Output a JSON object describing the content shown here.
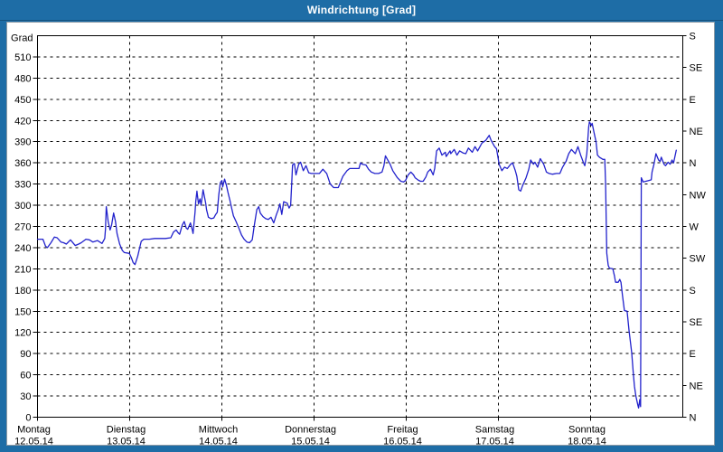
{
  "window": {
    "title": "Windrichtung [Grad]",
    "colors": {
      "frame": "#1e6da6",
      "title_text": "#ffffff",
      "panel_bg": "#ffffff",
      "axis": "#000000",
      "grid": "#000000",
      "text": "#000000",
      "line": "#2222cc"
    }
  },
  "chart_data": {
    "type": "line",
    "title": "Windrichtung [Grad]",
    "grid": "dashed",
    "legend": "none",
    "y_axis_left": {
      "label": "Grad",
      "min": 0,
      "max": 540,
      "tick_step": 30,
      "ticks": [
        0,
        30,
        60,
        90,
        120,
        150,
        180,
        210,
        240,
        270,
        300,
        330,
        360,
        390,
        420,
        450,
        480,
        510
      ]
    },
    "y_axis_right": {
      "kind": "compass",
      "ticks": [
        {
          "deg": 0,
          "label": "N"
        },
        {
          "deg": 45,
          "label": "NE"
        },
        {
          "deg": 90,
          "label": "E"
        },
        {
          "deg": 135,
          "label": "SE"
        },
        {
          "deg": 180,
          "label": "S"
        },
        {
          "deg": 225,
          "label": "SW"
        },
        {
          "deg": 270,
          "label": "W"
        },
        {
          "deg": 315,
          "label": "NW"
        },
        {
          "deg": 360,
          "label": "N"
        },
        {
          "deg": 405,
          "label": "NE"
        },
        {
          "deg": 450,
          "label": "E"
        },
        {
          "deg": 495,
          "label": "SE"
        },
        {
          "deg": 540,
          "label": "S"
        }
      ]
    },
    "x_axis": {
      "unit": "hours since 12.05.14 00:00",
      "hours_per_day": 24,
      "days": [
        {
          "name": "Montag",
          "date": "12.05.14"
        },
        {
          "name": "Dienstag",
          "date": "13.05.14"
        },
        {
          "name": "Mittwoch",
          "date": "14.05.14"
        },
        {
          "name": "Donnerstag",
          "date": "15.05.14"
        },
        {
          "name": "Freitag",
          "date": "16.05.14"
        },
        {
          "name": "Samstag",
          "date": "17.05.14"
        },
        {
          "name": "Sonntag",
          "date": "18.05.14"
        }
      ]
    },
    "series": [
      {
        "name": "Windrichtung",
        "unit": "Grad",
        "color": "#2222cc",
        "points": [
          [
            0,
            252
          ],
          [
            1.4,
            252
          ],
          [
            2.1,
            242
          ],
          [
            2.6,
            240
          ],
          [
            3.5,
            247
          ],
          [
            4.4,
            255
          ],
          [
            5.1,
            254
          ],
          [
            6.1,
            248
          ],
          [
            6.8,
            247
          ],
          [
            7.5,
            245
          ],
          [
            8.6,
            251
          ],
          [
            9.8,
            243
          ],
          [
            10.7,
            245
          ],
          [
            11.4,
            247
          ],
          [
            12.6,
            252
          ],
          [
            13.5,
            251
          ],
          [
            14.4,
            248
          ],
          [
            15.6,
            250
          ],
          [
            16.8,
            246
          ],
          [
            17.5,
            253
          ],
          [
            17.7,
            266
          ],
          [
            17.9,
            298
          ],
          [
            18.4,
            277
          ],
          [
            18.9,
            265
          ],
          [
            19.3,
            272
          ],
          [
            19.8,
            289
          ],
          [
            20.3,
            277
          ],
          [
            20.7,
            260
          ],
          [
            21.4,
            245
          ],
          [
            22.1,
            236
          ],
          [
            22.6,
            233
          ],
          [
            23.8,
            232
          ],
          [
            24,
            231
          ],
          [
            24.5,
            225
          ],
          [
            24.9,
            219
          ],
          [
            25.4,
            216
          ],
          [
            26.1,
            228
          ],
          [
            26.6,
            240
          ],
          [
            27,
            249
          ],
          [
            27.7,
            252
          ],
          [
            29.1,
            252
          ],
          [
            30.5,
            253
          ],
          [
            31.9,
            253
          ],
          [
            33.3,
            253
          ],
          [
            34.7,
            254
          ],
          [
            35.4,
            262
          ],
          [
            36.1,
            265
          ],
          [
            36.6,
            261
          ],
          [
            37,
            259
          ],
          [
            37.7,
            272
          ],
          [
            38.2,
            277
          ],
          [
            38.7,
            268
          ],
          [
            39.1,
            266
          ],
          [
            39.8,
            275
          ],
          [
            40.3,
            265
          ],
          [
            40.5,
            260
          ],
          [
            41,
            290
          ],
          [
            41.2,
            305
          ],
          [
            41.5,
            320
          ],
          [
            41.9,
            302
          ],
          [
            42.3,
            309
          ],
          [
            42.6,
            300
          ],
          [
            43.1,
            322
          ],
          [
            43.8,
            303
          ],
          [
            44,
            294
          ],
          [
            44.5,
            283
          ],
          [
            45.2,
            281
          ],
          [
            45.9,
            282
          ],
          [
            46.4,
            287
          ],
          [
            46.8,
            290
          ],
          [
            47.2,
            315
          ],
          [
            47.6,
            332
          ],
          [
            48,
            335
          ],
          [
            48.2,
            326
          ],
          [
            48.7,
            337
          ],
          [
            49.2,
            328
          ],
          [
            49.6,
            318
          ],
          [
            50.1,
            307
          ],
          [
            50.6,
            295
          ],
          [
            51,
            285
          ],
          [
            51.7,
            277
          ],
          [
            52.4,
            268
          ],
          [
            53.1,
            258
          ],
          [
            53.8,
            252
          ],
          [
            54.5,
            248
          ],
          [
            55.2,
            247
          ],
          [
            55.9,
            251
          ],
          [
            56.4,
            270
          ],
          [
            57.1,
            294
          ],
          [
            57.6,
            298
          ],
          [
            58,
            289
          ],
          [
            58.7,
            284
          ],
          [
            59.4,
            281
          ],
          [
            60.1,
            280
          ],
          [
            60.8,
            283
          ],
          [
            61.5,
            275
          ],
          [
            62.2,
            287
          ],
          [
            62.7,
            294
          ],
          [
            63.1,
            302
          ],
          [
            63.6,
            287
          ],
          [
            64.1,
            305
          ],
          [
            64.5,
            304
          ],
          [
            65,
            303
          ],
          [
            65.5,
            296
          ],
          [
            65.9,
            300
          ],
          [
            66.2,
            334
          ],
          [
            66.4,
            357
          ],
          [
            66.9,
            359
          ],
          [
            67.3,
            343
          ],
          [
            68,
            358
          ],
          [
            68.5,
            361
          ],
          [
            69.2,
            349
          ],
          [
            69.9,
            356
          ],
          [
            70.6,
            346
          ],
          [
            71.3,
            345
          ],
          [
            72,
            345
          ],
          [
            73.4,
            345
          ],
          [
            74.3,
            351
          ],
          [
            75.3,
            345
          ],
          [
            76.2,
            330
          ],
          [
            77.1,
            325
          ],
          [
            78.3,
            325
          ],
          [
            79.5,
            341
          ],
          [
            80.6,
            349
          ],
          [
            81.3,
            352
          ],
          [
            82.5,
            352
          ],
          [
            83.7,
            352
          ],
          [
            84.1,
            360
          ],
          [
            84.6,
            358
          ],
          [
            85.5,
            357
          ],
          [
            86.2,
            351
          ],
          [
            86.9,
            347
          ],
          [
            87.8,
            345
          ],
          [
            88.8,
            345
          ],
          [
            89.7,
            347
          ],
          [
            90.2,
            356
          ],
          [
            90.6,
            370
          ],
          [
            91.3,
            363
          ],
          [
            91.8,
            358
          ],
          [
            92.5,
            349
          ],
          [
            93.7,
            339
          ],
          [
            94.6,
            334
          ],
          [
            95.3,
            333
          ],
          [
            95.8,
            335
          ],
          [
            96.5,
            343
          ],
          [
            97.2,
            347
          ],
          [
            97.9,
            343
          ],
          [
            98.3,
            339
          ],
          [
            99,
            336
          ],
          [
            99.7,
            334
          ],
          [
            100.4,
            334
          ],
          [
            101.1,
            340
          ],
          [
            101.6,
            347
          ],
          [
            102.3,
            351
          ],
          [
            103,
            343
          ],
          [
            103.4,
            352
          ],
          [
            103.9,
            377
          ],
          [
            104.6,
            381
          ],
          [
            105.3,
            371
          ],
          [
            106.2,
            375
          ],
          [
            106.4,
            369
          ],
          [
            107.4,
            377
          ],
          [
            107.6,
            373
          ],
          [
            108.5,
            379
          ],
          [
            109.2,
            371
          ],
          [
            109.9,
            377
          ],
          [
            110.8,
            374
          ],
          [
            111.5,
            373
          ],
          [
            112.2,
            381
          ],
          [
            113.2,
            375
          ],
          [
            113.9,
            383
          ],
          [
            114.6,
            377
          ],
          [
            115.7,
            388
          ],
          [
            116.7,
            392
          ],
          [
            117.6,
            399
          ],
          [
            118.1,
            392
          ],
          [
            119,
            383
          ],
          [
            119.5,
            380
          ],
          [
            120.2,
            358
          ],
          [
            120.9,
            349
          ],
          [
            121.6,
            354
          ],
          [
            122.3,
            352
          ],
          [
            123.2,
            358
          ],
          [
            123.7,
            360
          ],
          [
            124.4,
            349
          ],
          [
            124.8,
            341
          ],
          [
            125.3,
            322
          ],
          [
            125.8,
            320
          ],
          [
            126.3,
            328
          ],
          [
            127.2,
            339
          ],
          [
            127.9,
            351
          ],
          [
            128.4,
            364
          ],
          [
            129.1,
            358
          ],
          [
            129.5,
            361
          ],
          [
            130.2,
            354
          ],
          [
            130.9,
            366
          ],
          [
            131.8,
            358
          ],
          [
            132.5,
            347
          ],
          [
            133.2,
            345
          ],
          [
            134.1,
            344
          ],
          [
            135.1,
            345
          ],
          [
            136,
            345
          ],
          [
            136.7,
            354
          ],
          [
            137.6,
            362
          ],
          [
            138.3,
            373
          ],
          [
            139,
            379
          ],
          [
            140,
            373
          ],
          [
            140.7,
            383
          ],
          [
            141.4,
            371
          ],
          [
            142.3,
            358
          ],
          [
            142.5,
            356
          ],
          [
            143,
            373
          ],
          [
            143.5,
            411
          ],
          [
            143.7,
            418
          ],
          [
            144.2,
            413
          ],
          [
            144.4,
            416
          ],
          [
            144.9,
            403
          ],
          [
            145.4,
            390
          ],
          [
            145.8,
            371
          ],
          [
            146.3,
            368
          ],
          [
            147.2,
            365
          ],
          [
            147.7,
            365
          ],
          [
            147.9,
            330
          ],
          [
            148.2,
            232
          ],
          [
            148.6,
            215
          ],
          [
            148.9,
            211
          ],
          [
            149.8,
            210
          ],
          [
            150.2,
            200
          ],
          [
            150.5,
            191
          ],
          [
            151.2,
            191
          ],
          [
            151.6,
            195
          ],
          [
            151.9,
            191
          ],
          [
            152.3,
            172
          ],
          [
            152.6,
            160
          ],
          [
            152.8,
            151
          ],
          [
            153.5,
            150
          ],
          [
            154,
            123
          ],
          [
            154.4,
            105
          ],
          [
            154.7,
            91
          ],
          [
            155.1,
            63
          ],
          [
            155.4,
            44
          ],
          [
            155.8,
            30
          ],
          [
            156.3,
            17
          ],
          [
            156.5,
            13
          ],
          [
            156.8,
            25
          ],
          [
            157,
            15
          ],
          [
            157.2,
            339
          ],
          [
            157.7,
            333
          ],
          [
            158.4,
            334
          ],
          [
            159.1,
            335
          ],
          [
            159.8,
            336
          ],
          [
            160,
            347
          ],
          [
            160.5,
            358
          ],
          [
            161,
            373
          ],
          [
            161.7,
            364
          ],
          [
            162.1,
            362
          ],
          [
            162.4,
            368
          ],
          [
            163.1,
            358
          ],
          [
            163.5,
            356
          ],
          [
            164.2,
            361
          ],
          [
            164.7,
            358
          ],
          [
            165.2,
            364
          ],
          [
            165.6,
            360
          ],
          [
            166.3,
            378
          ]
        ]
      }
    ]
  }
}
